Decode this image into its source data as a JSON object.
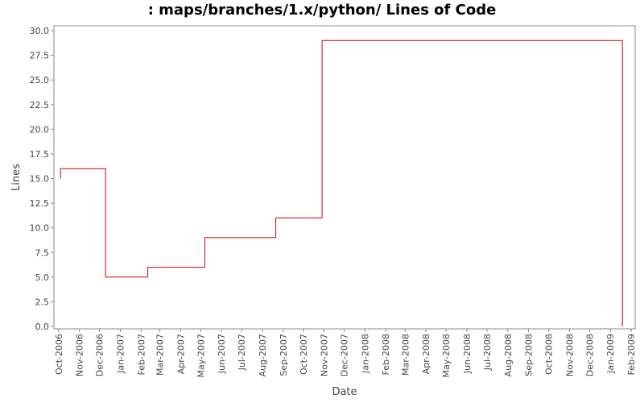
{
  "chart_data": {
    "type": "line",
    "title": ": maps/branches/1.x/python/ Lines of Code",
    "xlabel": "Date",
    "ylabel": "Lines",
    "ylim": [
      0,
      30
    ],
    "y_ticks": [
      "0.0",
      "2.5",
      "5.0",
      "7.5",
      "10.0",
      "12.5",
      "15.0",
      "17.5",
      "20.0",
      "22.5",
      "25.0",
      "27.5",
      "30.0"
    ],
    "x_ticks": [
      "Oct-2006",
      "Nov-2006",
      "Dec-2006",
      "Jan-2007",
      "Feb-2007",
      "Mar-2007",
      "Apr-2007",
      "May-2007",
      "Jun-2007",
      "Jul-2007",
      "Aug-2007",
      "Sep-2007",
      "Oct-2007",
      "Nov-2007",
      "Dec-2007",
      "Jan-2008",
      "Feb-2008",
      "Mar-2008",
      "Apr-2008",
      "May-2008",
      "Jun-2008",
      "Jul-2008",
      "Aug-2008",
      "Sep-2008",
      "Oct-2008",
      "Nov-2008",
      "Dec-2008",
      "Jan-2009",
      "Feb-2009"
    ],
    "xlim": [
      "2006-09-24",
      "2009-02-07"
    ],
    "series": [
      {
        "color": "#cc0000",
        "step": true,
        "points": [
          [
            "2006-10-04",
            15
          ],
          [
            "2006-10-04",
            16
          ],
          [
            "2006-12-10",
            16
          ],
          [
            "2006-12-10",
            5
          ],
          [
            "2007-02-11",
            5
          ],
          [
            "2007-02-11",
            6
          ],
          [
            "2007-05-07",
            6
          ],
          [
            "2007-05-07",
            9
          ],
          [
            "2007-08-21",
            9
          ],
          [
            "2007-08-21",
            11
          ],
          [
            "2007-10-29",
            11
          ],
          [
            "2007-10-29",
            29
          ],
          [
            "2009-01-19",
            29
          ],
          [
            "2009-01-19",
            0
          ]
        ]
      }
    ],
    "grid": false
  }
}
